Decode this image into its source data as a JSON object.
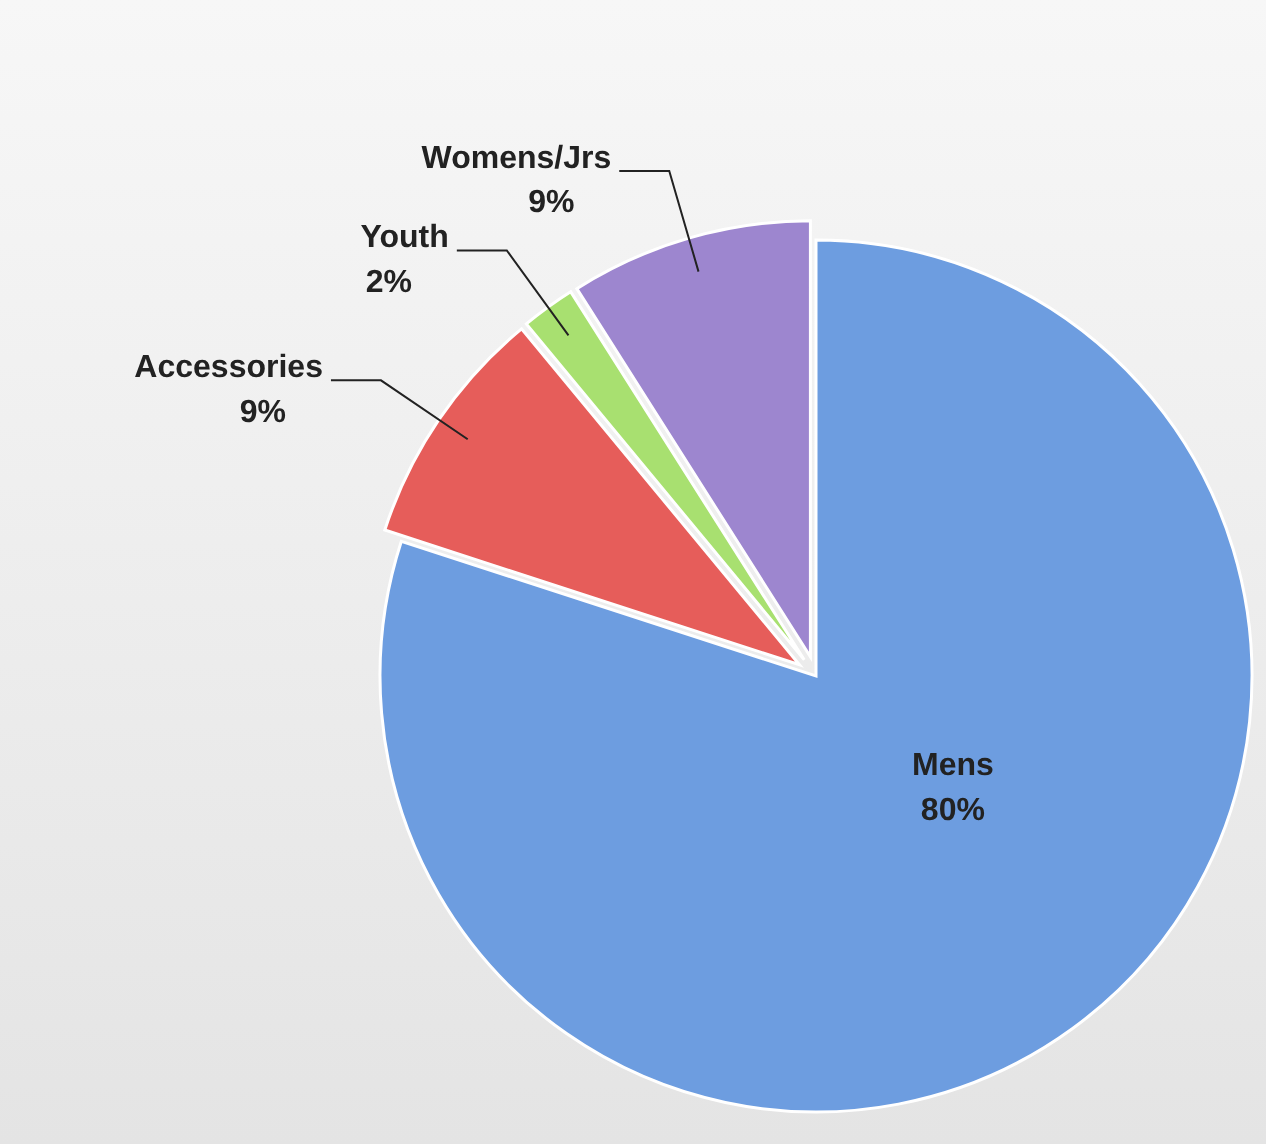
{
  "chart_data": {
    "type": "pie",
    "categories": [
      "Mens",
      "Accessories",
      "Youth",
      "Womens/Jrs"
    ],
    "values": [
      80,
      9,
      2,
      9
    ],
    "colors": [
      "#6d9de0",
      "#e65d5a",
      "#a8e070",
      "#9d86cf"
    ],
    "value_labels": [
      "80%",
      "9%",
      "2%",
      "9%"
    ]
  }
}
